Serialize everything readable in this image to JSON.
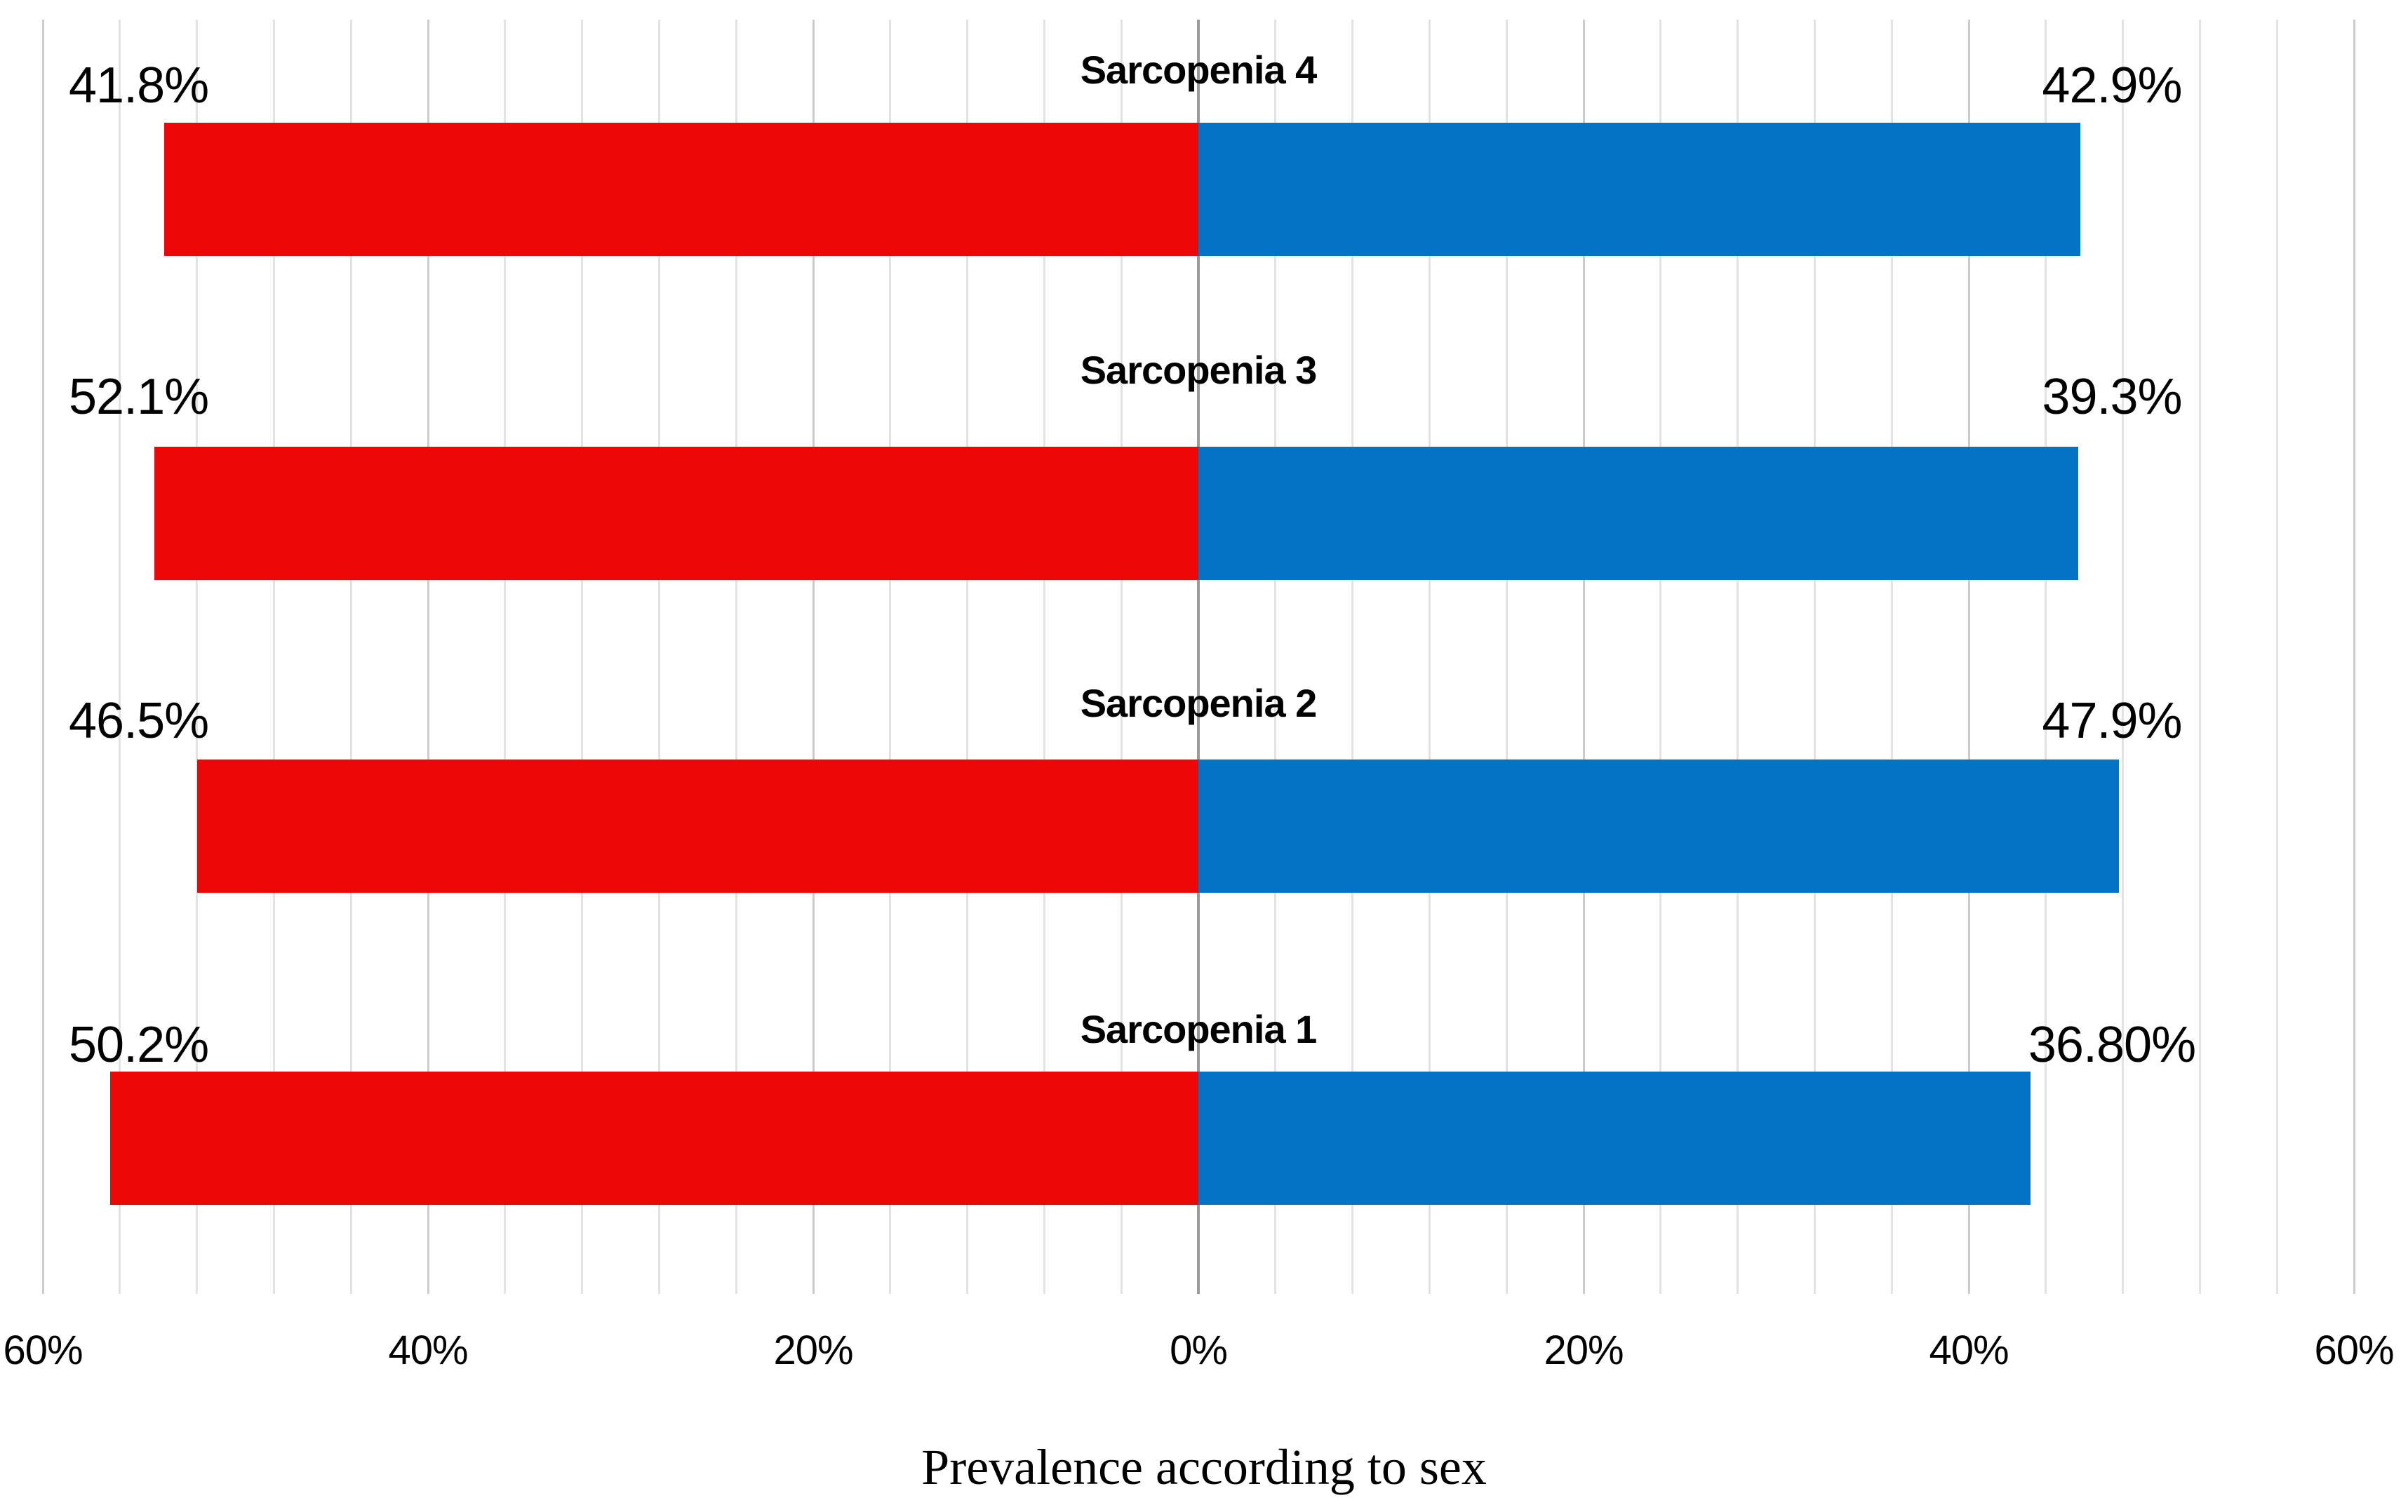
{
  "chart_data": {
    "type": "bar",
    "variant": "diverging-horizontal-tornado",
    "title": "Prevalence according to sex",
    "categories": [
      "Sarcopenia 4",
      "Sarcopenia 3",
      "Sarcopenia 2",
      "Sarcopenia 1"
    ],
    "series": [
      {
        "name": "left-red-bars",
        "side": "left",
        "color": "#ec0606",
        "values": [
          41.8,
          52.1,
          46.5,
          50.2
        ],
        "labels": [
          "41.8%",
          "52.1%",
          "46.5%",
          "50.2%"
        ]
      },
      {
        "name": "right-blue-bars",
        "side": "right",
        "color": "#0273c5",
        "values": [
          42.9,
          39.3,
          47.9,
          36.8
        ],
        "labels": [
          "42.9%",
          "39.3%",
          "47.9%",
          "36.80%"
        ]
      }
    ],
    "axis": {
      "min": -60,
      "max": 60,
      "tick_values": [
        -60,
        -40,
        -20,
        0,
        20,
        40,
        60
      ],
      "tick_labels": [
        "60%",
        "40%",
        "20%",
        "0%",
        "20%",
        "40%",
        "60%"
      ],
      "minor_gridline_step": 4,
      "major_tick_step": 20,
      "grid": true,
      "legend": "none"
    },
    "render": {
      "note": "bar extents as drawn in the source figure, in axis % units; drawn bars are not exactly proportional to the printed data labels",
      "bar_extent_left": [
        53.7,
        54.2,
        52.0,
        56.5
      ],
      "bar_extent_right": [
        45.8,
        45.7,
        47.8,
        43.2
      ]
    },
    "colors": {
      "left_bar": "#ec0606",
      "right_bar": "#0273c5",
      "gridline_minor": "#e3e3e3",
      "gridline_major": "#cccccc",
      "gridline_center": "#9b9b9b",
      "text": "#000000",
      "background": "#ffffff"
    }
  }
}
